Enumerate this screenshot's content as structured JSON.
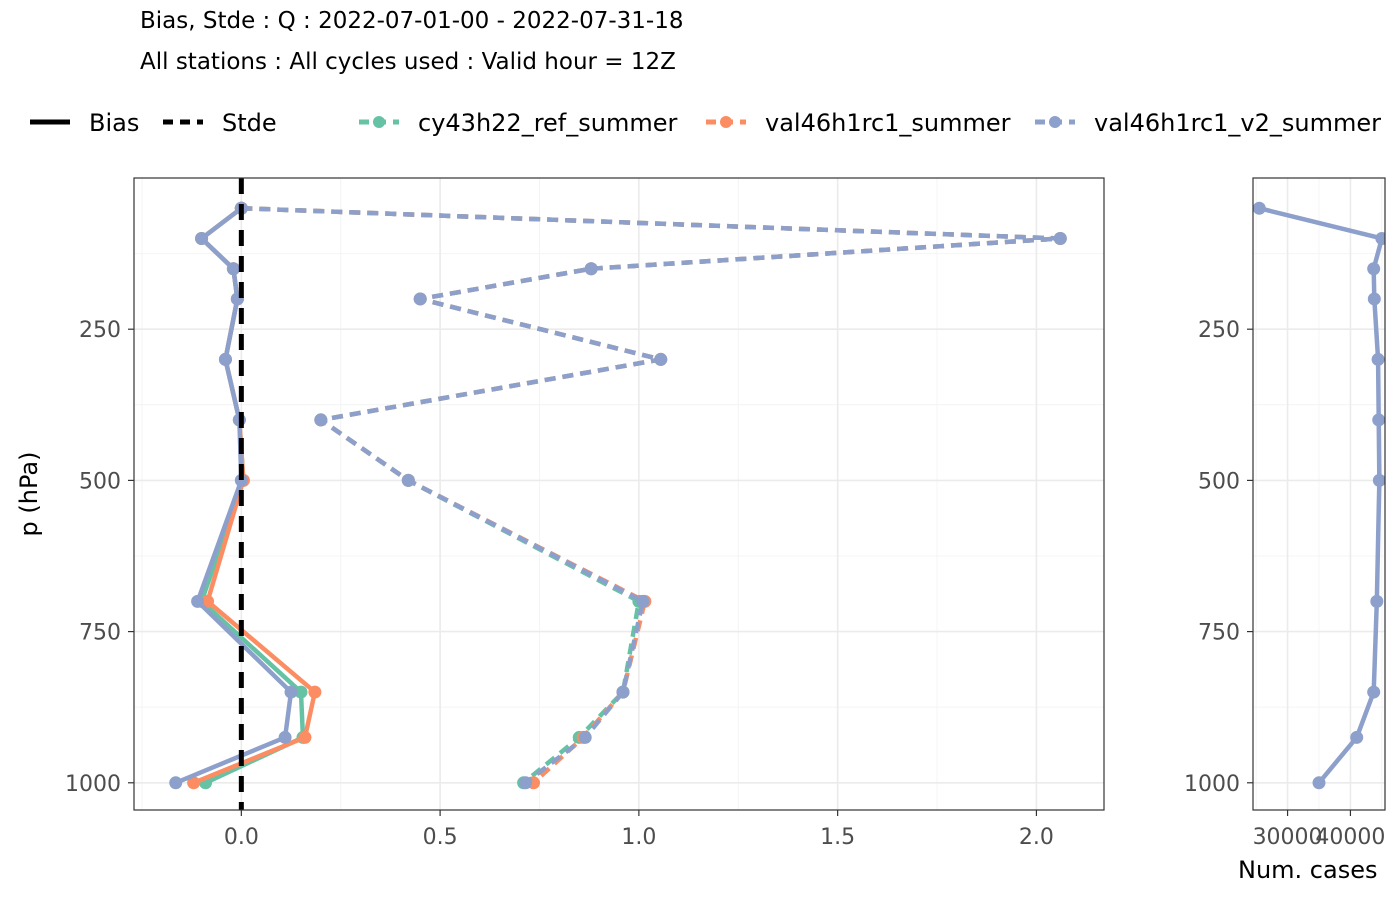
{
  "chart_data": [
    {
      "type": "line",
      "title": "Bias, Stde : Q : 2022-07-01-00 - 2022-07-31-18",
      "subtitle": "All stations : All cycles used : Valid hour = 12Z",
      "xlabel": "",
      "ylabel": "p (hPa)",
      "xlim": [
        -0.27,
        2.17
      ],
      "ylim": [
        1045,
        0
      ],
      "xticks": [
        0.0,
        0.5,
        1.0,
        1.5,
        2.0
      ],
      "xtick_labels": [
        "0.0",
        "0.5",
        "1.0",
        "1.5",
        "2.0"
      ],
      "yticks": [
        250,
        500,
        750,
        1000
      ],
      "ytick_labels": [
        "250",
        "500",
        "750",
        "1000"
      ],
      "y_reversed": true,
      "grid": true,
      "legend_position": "top",
      "linetype_legend": [
        {
          "label": "Bias",
          "style": "solid"
        },
        {
          "label": "Stde",
          "style": "dashed"
        }
      ],
      "reference_line": {
        "x": 0,
        "style": "dashed",
        "color": "#000000"
      },
      "p_levels": [
        50,
        100,
        150,
        200,
        300,
        400,
        500,
        700,
        850,
        925,
        1000
      ],
      "series": [
        {
          "name": "cy43h22_ref_summer",
          "color": "#66C2A5",
          "bias": [
            0.0,
            -0.1,
            -0.02,
            -0.01,
            -0.04,
            -0.005,
            0.005,
            -0.1,
            0.15,
            0.155,
            -0.09
          ],
          "stde": [
            0.0,
            2.06,
            0.88,
            0.45,
            1.055,
            0.2,
            0.42,
            1.0,
            0.96,
            0.85,
            0.71
          ]
        },
        {
          "name": "val46h1rc1_summer",
          "color": "#FC8D62",
          "bias": [
            0.0,
            -0.1,
            -0.02,
            -0.01,
            -0.04,
            -0.005,
            0.005,
            -0.085,
            0.185,
            0.16,
            -0.12
          ],
          "stde": [
            0.0,
            2.06,
            0.88,
            0.45,
            1.055,
            0.2,
            0.42,
            1.015,
            0.96,
            0.86,
            0.735
          ]
        },
        {
          "name": "val46h1rc1_v2_summer",
          "color": "#8DA0CB",
          "bias": [
            0.0,
            -0.1,
            -0.02,
            -0.01,
            -0.04,
            -0.005,
            0.0,
            -0.11,
            0.125,
            0.11,
            -0.165
          ],
          "stde": [
            0.0,
            2.06,
            0.88,
            0.45,
            1.055,
            0.2,
            0.42,
            1.01,
            0.96,
            0.865,
            0.715
          ]
        }
      ]
    },
    {
      "type": "line",
      "xlabel": "Num. cases",
      "ylabel": "",
      "xlim": [
        24500,
        45500
      ],
      "ylim": [
        1045,
        0
      ],
      "xticks": [
        30000,
        40000
      ],
      "xtick_labels": [
        "30000",
        "40000"
      ],
      "yticks": [
        250,
        500,
        750,
        1000
      ],
      "ytick_labels": [
        "250",
        "500",
        "750",
        "1000"
      ],
      "y_reversed": true,
      "grid": true,
      "series": [
        {
          "name": "val46h1rc1_v2_summer",
          "color": "#8DA0CB",
          "p": [
            50,
            100,
            150,
            200,
            300,
            400,
            500,
            700,
            850,
            925,
            1000
          ],
          "values": [
            25500,
            45000,
            43700,
            43800,
            44400,
            44500,
            44600,
            44200,
            43700,
            41000,
            35000
          ]
        }
      ]
    }
  ],
  "legend": {
    "bias_label": "Bias",
    "stde_label": "Stde",
    "series_labels": [
      "cy43h22_ref_summer",
      "val46h1rc1_summer",
      "val46h1rc1_v2_summer"
    ]
  }
}
